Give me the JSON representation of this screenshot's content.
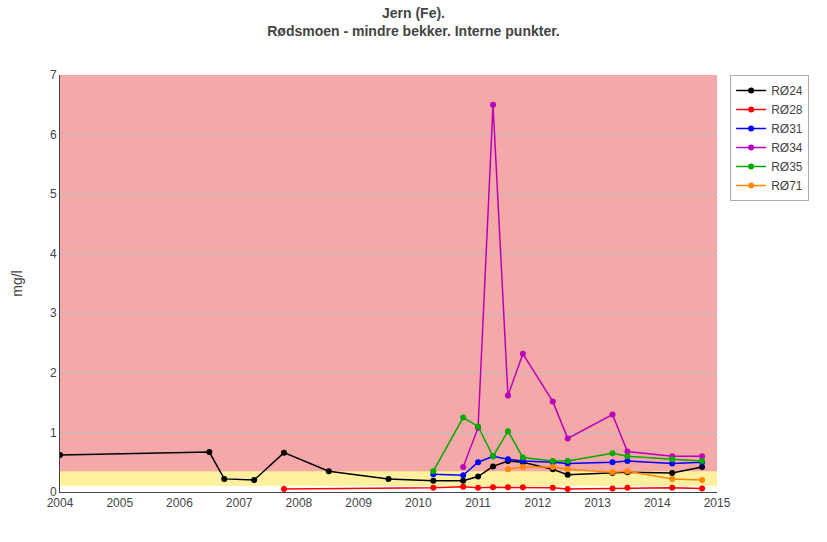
{
  "chart_data": {
    "type": "line",
    "title": "Jern (Fe).",
    "subtitle": "Rødsmoen - mindre bekker. Interne punkter.",
    "ylabel": "mg/l",
    "xlim": [
      2004,
      2015
    ],
    "ylim": [
      0,
      7
    ],
    "xticks": [
      2004,
      2005,
      2006,
      2007,
      2008,
      2009,
      2010,
      2011,
      2012,
      2013,
      2014,
      2015
    ],
    "yticks": [
      0,
      1,
      2,
      3,
      4,
      5,
      6,
      7
    ],
    "grid": true,
    "legend": "right",
    "marker": "circle",
    "bands": [
      {
        "from": 0,
        "to": 7,
        "color": "#F5A8A8"
      },
      {
        "from": 0,
        "to": 0.35,
        "color": "#FFF0A0"
      },
      {
        "from": 0,
        "to": 0.1,
        "color": "#FFFFFF"
      }
    ],
    "series": [
      {
        "name": "RØ24",
        "color": "#000000",
        "x": [
          2004.0,
          2006.5,
          2006.75,
          2007.25,
          2007.75,
          2008.5,
          2009.5,
          2010.25,
          2010.75,
          2011.0,
          2011.25,
          2011.5,
          2011.75,
          2012.25,
          2012.5,
          2013.25,
          2013.5,
          2014.25,
          2014.75
        ],
        "values": [
          0.62,
          0.67,
          0.22,
          0.2,
          0.66,
          0.35,
          0.22,
          0.19,
          0.19,
          0.26,
          0.43,
          0.52,
          0.5,
          0.38,
          0.29,
          0.32,
          0.33,
          0.32,
          0.42
        ]
      },
      {
        "name": "RØ28",
        "color": "#FF0000",
        "x": [
          2007.75,
          2010.25,
          2010.75,
          2011.0,
          2011.25,
          2011.5,
          2011.75,
          2012.25,
          2012.5,
          2013.25,
          2013.5,
          2014.25,
          2014.75
        ],
        "values": [
          0.05,
          0.07,
          0.09,
          0.07,
          0.08,
          0.08,
          0.08,
          0.07,
          0.05,
          0.06,
          0.07,
          0.07,
          0.06
        ]
      },
      {
        "name": "RØ31",
        "color": "#0000FF",
        "x": [
          2010.25,
          2010.75,
          2011.0,
          2011.25,
          2011.5,
          2011.75,
          2012.25,
          2012.5,
          2013.25,
          2013.5,
          2014.25,
          2014.75
        ],
        "values": [
          0.3,
          0.28,
          0.5,
          0.6,
          0.55,
          0.52,
          0.5,
          0.48,
          0.5,
          0.52,
          0.48,
          0.5
        ]
      },
      {
        "name": "RØ34",
        "color": "#BB00BB",
        "x": [
          2010.75,
          2011.0,
          2011.25,
          2011.5,
          2011.75,
          2012.25,
          2012.5,
          2013.25,
          2013.5,
          2014.25,
          2014.75
        ],
        "values": [
          0.42,
          1.08,
          6.5,
          1.62,
          2.32,
          1.52,
          0.9,
          1.3,
          0.68,
          0.6,
          0.6
        ]
      },
      {
        "name": "RØ35",
        "color": "#00AA00",
        "x": [
          2010.25,
          2010.75,
          2011.0,
          2011.25,
          2011.5,
          2011.75,
          2012.25,
          2012.5,
          2013.25,
          2013.5,
          2014.25,
          2014.75
        ],
        "values": [
          0.35,
          1.25,
          1.1,
          0.6,
          1.02,
          0.58,
          0.52,
          0.52,
          0.65,
          0.6,
          0.55,
          0.52
        ]
      },
      {
        "name": "RØ71",
        "color": "#FF8800",
        "x": [
          2011.5,
          2011.75,
          2012.25,
          2012.5,
          2013.25,
          2013.5,
          2014.25,
          2014.75
        ],
        "values": [
          0.38,
          0.42,
          0.42,
          0.38,
          0.33,
          0.35,
          0.22,
          0.2
        ]
      }
    ]
  }
}
